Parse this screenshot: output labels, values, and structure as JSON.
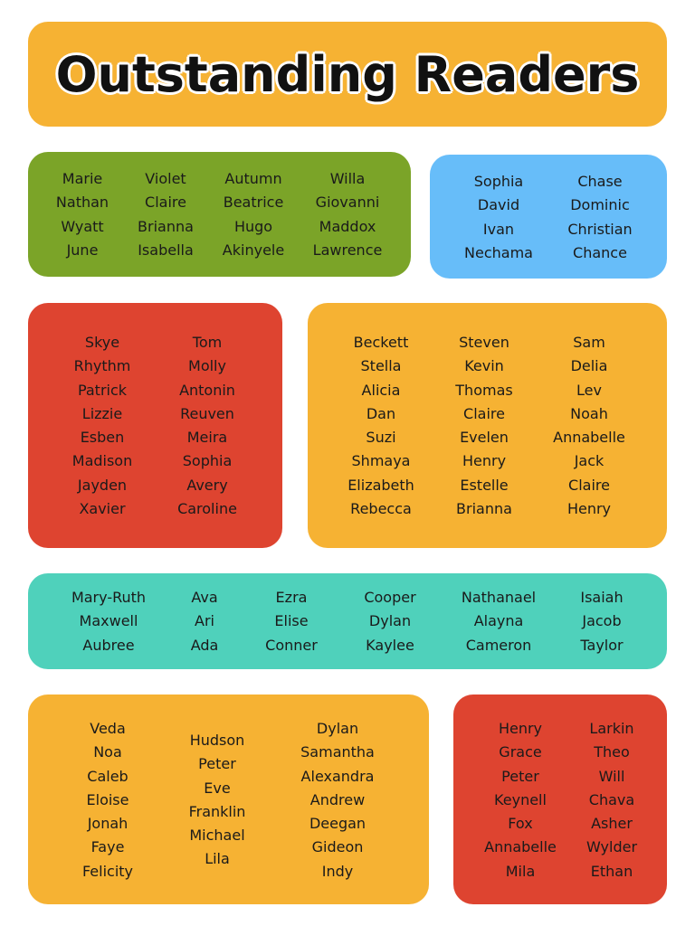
{
  "title": "Outstanding Readers",
  "colors": {
    "green": "#7BA428",
    "blue": "#67BDF9",
    "red": "#DE4430",
    "orange": "#F6B233",
    "teal": "#4FD1BB"
  },
  "groups": [
    {
      "columns": [
        [
          "Marie",
          "Nathan",
          "Wyatt",
          "June"
        ],
        [
          "Violet",
          "Claire",
          "Brianna",
          "Isabella"
        ],
        [
          "Autumn",
          "Beatrice",
          "Hugo",
          "Akinyele"
        ],
        [
          "Willa",
          "Giovanni",
          "Maddox",
          "Lawrence"
        ]
      ]
    },
    {
      "columns": [
        [
          "Sophia",
          "David",
          "Ivan",
          "Nechama"
        ],
        [
          "Chase",
          "Dominic",
          "Christian",
          "Chance"
        ]
      ]
    },
    {
      "columns": [
        [
          "Skye",
          "Rhythm",
          "Patrick",
          "Lizzie",
          "Esben",
          "Madison",
          "Jayden",
          "Xavier"
        ],
        [
          "Tom",
          "Molly",
          "Antonin",
          "Reuven",
          "Meira",
          "Sophia",
          "Avery",
          "Caroline"
        ]
      ]
    },
    {
      "columns": [
        [
          "Beckett",
          "Stella",
          "Alicia",
          "Dan",
          "Suzi",
          "Shmaya",
          "Elizabeth",
          "Rebecca"
        ],
        [
          "Steven",
          "Kevin",
          "Thomas",
          "Claire",
          "Evelen",
          "Henry",
          "Estelle",
          "Brianna"
        ],
        [
          "Sam",
          "Delia",
          "Lev",
          "Noah",
          "Annabelle",
          "Jack",
          "Claire",
          "Henry"
        ]
      ]
    },
    {
      "columns": [
        [
          "Mary-Ruth",
          "Maxwell",
          "Aubree"
        ],
        [
          "Ava",
          "Ari",
          "Ada"
        ],
        [
          "Ezra",
          "Elise",
          "Conner"
        ],
        [
          "Cooper",
          "Dylan",
          "Kaylee"
        ],
        [
          "Nathanael",
          "Alayna",
          "Cameron"
        ],
        [
          "Isaiah",
          "Jacob",
          "Taylor"
        ]
      ]
    },
    {
      "columns": [
        [
          "Veda",
          "Noa",
          "Caleb",
          "Eloise",
          "Jonah",
          "Faye",
          "Felicity"
        ],
        [
          "Hudson",
          "Peter",
          "Eve",
          "Franklin",
          "Michael",
          "Lila"
        ],
        [
          "Dylan",
          "Samantha",
          "Alexandra",
          "Andrew",
          "Deegan",
          "Gideon",
          "Indy"
        ]
      ]
    },
    {
      "columns": [
        [
          "Henry",
          "Grace",
          "Peter",
          "Keynell",
          "Fox",
          "Annabelle",
          "Mila"
        ],
        [
          "Larkin",
          "Theo",
          "Will",
          "Chava",
          "Asher",
          "Wylder",
          "Ethan"
        ]
      ]
    }
  ]
}
